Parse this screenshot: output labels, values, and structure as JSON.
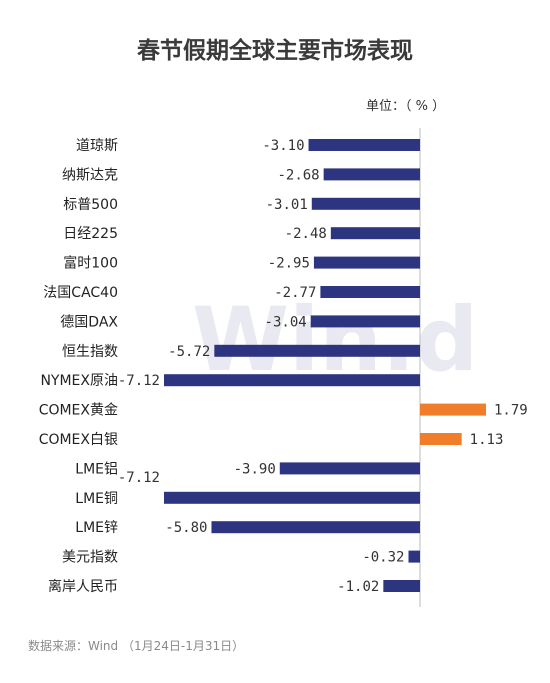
{
  "chart_data": {
    "type": "bar",
    "orientation": "horizontal",
    "title": "春节假期全球主要市场表现",
    "unit": "单位：（ % ）",
    "source": "数据来源：Wind  （1月24日-1月31日）",
    "watermark": "Win.d",
    "categories": [
      "道琼斯",
      "纳斯达克",
      "标普500",
      "日经225",
      "富时100",
      "法国CAC40",
      "德国DAX",
      "恒生指数",
      "NYMEX原油",
      "COMEX黄金",
      "COMEX白银",
      "LME铝",
      "LME铜",
      "LME锌",
      "美元指数",
      "离岸人民币"
    ],
    "values": [
      -3.1,
      -2.68,
      -3.01,
      -2.48,
      -2.95,
      -2.77,
      -3.04,
      -5.72,
      -7.12,
      1.79,
      1.13,
      -3.9,
      -7.12,
      -5.8,
      -0.32,
      -1.02
    ],
    "labels": [
      "-3.10",
      "-2.68",
      "-3.01",
      "-2.48",
      "-2.95",
      "-2.77",
      "-3.04",
      "-5.72",
      "-7.12",
      "1.79",
      "1.13",
      "-3.90",
      "-7.12",
      "-5.80",
      "-0.32",
      "-1.02"
    ],
    "xlim": [
      -7.12,
      1.79
    ],
    "colors": {
      "negative": "#2e3580",
      "positive": "#f07d2a",
      "axis": "#bbbbbb"
    }
  }
}
